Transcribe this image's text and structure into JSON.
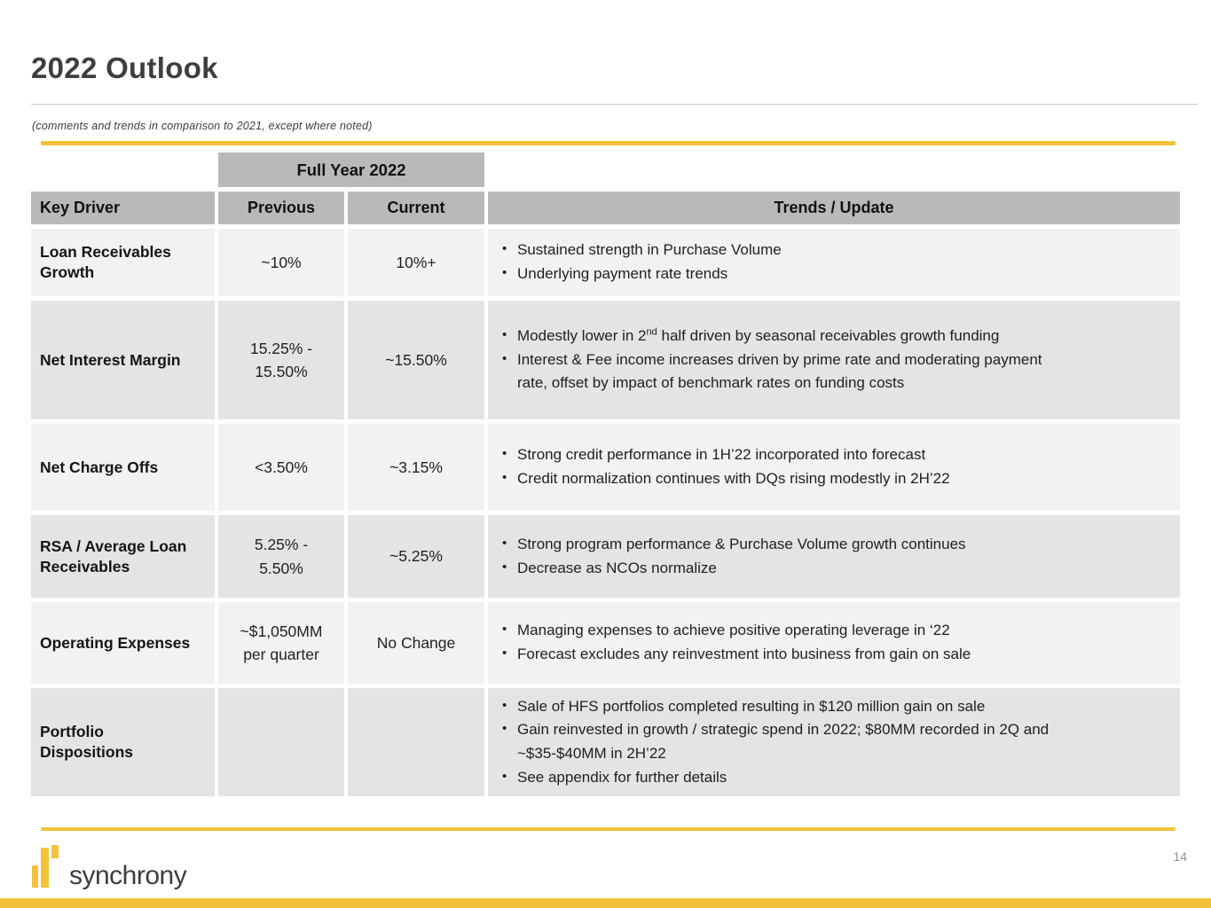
{
  "colors": {
    "gold": "#F3C23C",
    "header_gray": "#B9B9B9",
    "row_light": "#F2F2F2",
    "row_dark": "#E4E4E4"
  },
  "header": {
    "title": "2022 Outlook",
    "subtitle": "(comments and trends in comparison to 2021, except where noted)"
  },
  "table": {
    "group_header": "Full Year 2022",
    "columns": {
      "key_driver": "Key Driver",
      "previous": "Previous",
      "current": "Current",
      "trends": "Trends / Update"
    },
    "rows": [
      {
        "driver": "Loan Receivables Growth",
        "previous": "~10%",
        "current": "10%+",
        "trends": [
          "Sustained strength in Purchase Volume",
          "Underlying payment rate trends"
        ]
      },
      {
        "driver": "Net Interest Margin",
        "previous": "15.25% -\n15.50%",
        "current": "~15.50%",
        "trends": [
          {
            "pre": "Modestly lower in 2",
            "sup": "nd",
            "post": " half driven by seasonal receivables growth funding"
          },
          "Interest & Fee income increases driven by prime rate and moderating payment rate, offset by impact of benchmark rates on funding costs"
        ]
      },
      {
        "driver": "Net Charge Offs",
        "previous": "<3.50%",
        "current": "~3.15%",
        "trends": [
          "Strong credit performance in 1H’22 incorporated into forecast",
          "Credit normalization continues with DQs rising modestly in 2H’22"
        ]
      },
      {
        "driver": "RSA / Average Loan Receivables",
        "previous": "5.25% -\n5.50%",
        "current": "~5.25%",
        "trends": [
          "Strong program performance & Purchase Volume growth continues",
          "Decrease as NCOs normalize"
        ]
      },
      {
        "driver": "Operating Expenses",
        "previous": "~$1,050MM\nper quarter",
        "current": "No Change",
        "trends": [
          "Managing expenses to achieve positive operating leverage in ‘22",
          "Forecast excludes any reinvestment into business from gain on sale"
        ]
      },
      {
        "driver": "Portfolio Dispositions",
        "previous": "",
        "current": "",
        "trends": [
          "Sale of HFS portfolios completed resulting in $120 million gain on sale",
          "Gain reinvested in growth / strategic spend in 2022; $80MM recorded in 2Q and ~$35-$40MM in 2H’22",
          "See appendix for further details"
        ]
      }
    ]
  },
  "footer": {
    "logo_text": "synchrony",
    "page_number": "14"
  }
}
